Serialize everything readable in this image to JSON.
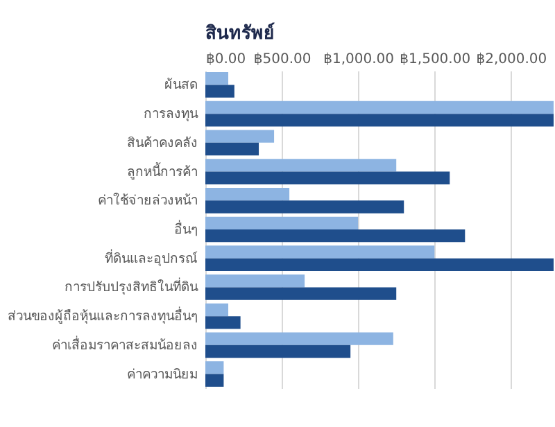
{
  "chart_data": {
    "type": "bar",
    "title": "สินทรัพย์",
    "orientation": "horizontal",
    "categories": [
      "ผ้นสด",
      "การลงทุน",
      "สินค้าคงคลัง",
      "ลูกหนี้การค้า",
      "ค่าใช้จ่ายล่วงหน้า",
      "อื่นๆ",
      "ที่ดินและอุปกรณ์",
      "การปรับปรุงสิทธิในที่ดิน",
      "ส่วนของผู้ถือหุ้นและการลงทุนอื่นๆ",
      "ค่าเสื่อมราคาสะสมน้อยลง",
      "ค่าความนิยม"
    ],
    "series": [
      {
        "color": "#8db4e2",
        "values": [
          150,
          2280,
          450,
          1250,
          550,
          1000,
          1500,
          650,
          150,
          1230,
          120
        ]
      },
      {
        "color": "#1f4e8c",
        "values": [
          190,
          2280,
          350,
          1600,
          1300,
          1700,
          2280,
          1250,
          230,
          950,
          120
        ]
      }
    ],
    "xlim": [
      0,
      2280
    ],
    "xticks": [
      {
        "value": 0,
        "label": "฿0.00"
      },
      {
        "value": 500,
        "label": "฿500.00"
      },
      {
        "value": 1000,
        "label": "฿1,000.00"
      },
      {
        "value": 1500,
        "label": "฿1,500.00"
      },
      {
        "value": 2000,
        "label": "฿2,000.00"
      }
    ],
    "grid": "x",
    "legend": false
  }
}
